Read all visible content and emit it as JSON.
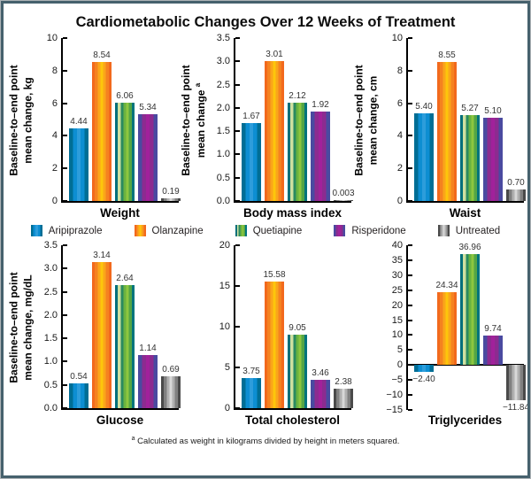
{
  "title": "Cardiometabolic Changes Over 12 Weeks of Treatment",
  "legend": {
    "items": [
      "Aripiprazole",
      "Olanzapine",
      "Quetiapine",
      "Risperidone",
      "Untreated"
    ]
  },
  "colors": {
    "frame_border": "#46616d",
    "outer_border": "#adb3b6",
    "axis": "#000000",
    "series": [
      {
        "name": "Aripiprazole",
        "stripes": [
          "#006e95",
          "#0d8ed2",
          "#2d9ddb",
          "#0d8ed2",
          "#006e95"
        ]
      },
      {
        "name": "Olanzapine",
        "stripes": [
          "#f2691d",
          "#f58220",
          "#faa61a",
          "#fdc60b",
          "#faa61a",
          "#f58220",
          "#f2691d"
        ]
      },
      {
        "name": "Quetiapine",
        "stripes": [
          "#006f7a",
          "#cfe0a0",
          "#2a8a60",
          "#6ab33f",
          "#8dc63f",
          "#54a545",
          "#00747c"
        ]
      },
      {
        "name": "Risperidone",
        "stripes": [
          "#4a4aa0",
          "#8c2b90",
          "#a1219b",
          "#8c2b90",
          "#4a4aa0"
        ]
      },
      {
        "name": "Untreated",
        "stripes": [
          "#4a4a4a",
          "#808080",
          "#b0b0b0",
          "#d8d8d8",
          "#b0b0b0",
          "#808080",
          "#4a4a4a"
        ]
      }
    ]
  },
  "chart_data": [
    {
      "id": "weight",
      "type": "bar",
      "title": "Weight",
      "ylabel_lines": [
        "Baseline-to–end point",
        "mean change, kg"
      ],
      "ylabel_sup": "",
      "ylim": [
        0,
        10
      ],
      "yticks": [
        {
          "value": 0,
          "label": "0"
        },
        {
          "value": 2,
          "label": "2"
        },
        {
          "value": 4,
          "label": "4"
        },
        {
          "value": 6,
          "label": "6"
        },
        {
          "value": 8,
          "label": "8"
        },
        {
          "value": 10,
          "label": "10"
        }
      ],
      "categories": [
        "Aripiprazole",
        "Olanzapine",
        "Quetiapine",
        "Risperidone",
        "Untreated"
      ],
      "values": [
        4.44,
        8.54,
        6.06,
        5.34,
        0.19
      ],
      "value_labels": [
        "4.44",
        "8.54",
        "6.06",
        "5.34",
        "0.19"
      ]
    },
    {
      "id": "bmi",
      "type": "bar",
      "title": "Body mass index",
      "ylabel_lines": [
        "Baseline-to–end point",
        "mean change"
      ],
      "ylabel_sup": "a",
      "ylim": [
        0,
        3.5
      ],
      "yticks": [
        {
          "value": 0,
          "label": "0.0"
        },
        {
          "value": 0.5,
          "label": "0.5"
        },
        {
          "value": 1,
          "label": "1.0"
        },
        {
          "value": 1.5,
          "label": "1.5"
        },
        {
          "value": 2,
          "label": "2.0"
        },
        {
          "value": 2.5,
          "label": "2.5"
        },
        {
          "value": 3,
          "label": "3.0"
        },
        {
          "value": 3.5,
          "label": "3.5"
        }
      ],
      "categories": [
        "Aripiprazole",
        "Olanzapine",
        "Quetiapine",
        "Risperidone",
        "Untreated"
      ],
      "values": [
        1.67,
        3.01,
        2.12,
        1.92,
        0.003
      ],
      "value_labels": [
        "1.67",
        "3.01",
        "2.12",
        "1.92",
        "0.003"
      ]
    },
    {
      "id": "waist",
      "type": "bar",
      "title": "Waist",
      "ylabel_lines": [
        "Baseline-to–end point",
        "mean change, cm"
      ],
      "ylabel_sup": "",
      "ylim": [
        0,
        10
      ],
      "yticks": [
        {
          "value": 0,
          "label": "0"
        },
        {
          "value": 2,
          "label": "2"
        },
        {
          "value": 4,
          "label": "4"
        },
        {
          "value": 6,
          "label": "6"
        },
        {
          "value": 8,
          "label": "8"
        },
        {
          "value": 10,
          "label": "10"
        }
      ],
      "categories": [
        "Aripiprazole",
        "Olanzapine",
        "Quetiapine",
        "Risperidone",
        "Untreated"
      ],
      "values": [
        5.4,
        8.55,
        5.27,
        5.1,
        0.7
      ],
      "value_labels": [
        "5.40",
        "8.55",
        "5.27",
        "5.10",
        "0.70"
      ]
    },
    {
      "id": "glucose",
      "type": "bar",
      "title": "Glucose",
      "ylabel_lines": [
        "Baseline-to–end point",
        "mean change, mg/dL"
      ],
      "ylabel_sup": "",
      "ylim": [
        0,
        3.5
      ],
      "yticks": [
        {
          "value": 0,
          "label": "0.0"
        },
        {
          "value": 0.5,
          "label": "0.5"
        },
        {
          "value": 1,
          "label": "1.0"
        },
        {
          "value": 1.5,
          "label": "1.5"
        },
        {
          "value": 2,
          "label": "2.0"
        },
        {
          "value": 2.5,
          "label": "2.5"
        },
        {
          "value": 3,
          "label": "3.0"
        },
        {
          "value": 3.5,
          "label": "3.5"
        }
      ],
      "categories": [
        "Aripiprazole",
        "Olanzapine",
        "Quetiapine",
        "Risperidone",
        "Untreated"
      ],
      "values": [
        0.54,
        3.14,
        2.64,
        1.14,
        0.69
      ],
      "value_labels": [
        "0.54",
        "3.14",
        "2.64",
        "1.14",
        "0.69"
      ]
    },
    {
      "id": "total-cholesterol",
      "type": "bar",
      "title": "Total cholesterol",
      "ylabel_lines": [],
      "ylabel_sup": "",
      "ylim": [
        0,
        20
      ],
      "yticks": [
        {
          "value": 0,
          "label": "0"
        },
        {
          "value": 5,
          "label": "5"
        },
        {
          "value": 10,
          "label": "10"
        },
        {
          "value": 15,
          "label": "15"
        },
        {
          "value": 20,
          "label": "20"
        }
      ],
      "categories": [
        "Aripiprazole",
        "Olanzapine",
        "Quetiapine",
        "Risperidone",
        "Untreated"
      ],
      "values": [
        3.75,
        15.58,
        9.05,
        3.46,
        2.38
      ],
      "value_labels": [
        "3.75",
        "15.58",
        "9.05",
        "3.46",
        "2.38"
      ]
    },
    {
      "id": "triglycerides",
      "type": "bar",
      "title": "Triglycerides",
      "ylabel_lines": [],
      "ylabel_sup": "",
      "ylim": [
        -15,
        40
      ],
      "yticks": [
        {
          "value": -15,
          "label": "−15"
        },
        {
          "value": -10,
          "label": "−10"
        },
        {
          "value": -5,
          "label": "−5"
        },
        {
          "value": 0,
          "label": "0"
        },
        {
          "value": 5,
          "label": "5"
        },
        {
          "value": 10,
          "label": "10"
        },
        {
          "value": 15,
          "label": "15"
        },
        {
          "value": 20,
          "label": "20"
        },
        {
          "value": 25,
          "label": "25"
        },
        {
          "value": 30,
          "label": "30"
        },
        {
          "value": 35,
          "label": "35"
        },
        {
          "value": 40,
          "label": "40"
        }
      ],
      "categories": [
        "Aripiprazole",
        "Olanzapine",
        "Quetiapine",
        "Risperidone",
        "Untreated"
      ],
      "values": [
        -2.4,
        24.34,
        36.96,
        9.74,
        -11.84
      ],
      "value_labels": [
        "−2.40",
        "24.34",
        "36.96",
        "9.74",
        "−11.84"
      ]
    }
  ],
  "footnote": {
    "sup": "a",
    "text": "Calculated as weight in kilograms divided by height in meters squared."
  }
}
